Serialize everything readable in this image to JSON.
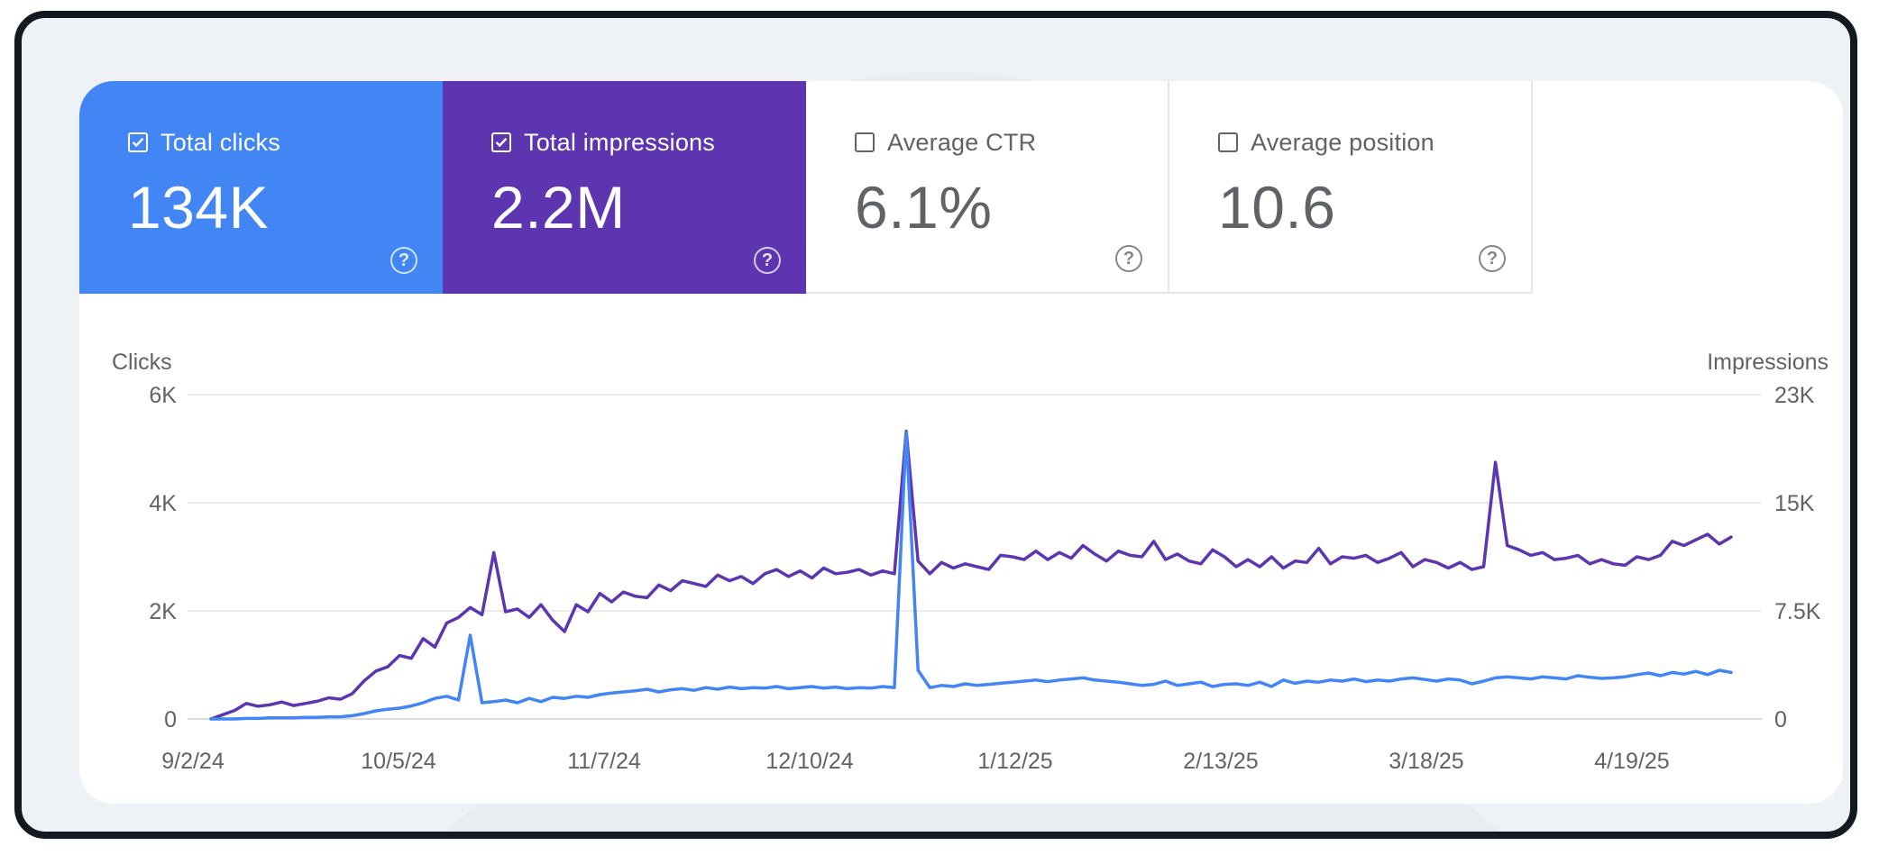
{
  "metrics": [
    {
      "label": "Total clicks",
      "value": "134K",
      "checked": true,
      "color": "#4285f4"
    },
    {
      "label": "Total impressions",
      "value": "2.2M",
      "checked": true,
      "color": "#5e35b1"
    },
    {
      "label": "Average CTR",
      "value": "6.1%",
      "checked": false,
      "color": "#ffffff"
    },
    {
      "label": "Average position",
      "value": "10.6",
      "checked": false,
      "color": "#ffffff"
    }
  ],
  "help_glyph": "?",
  "icons": {
    "checkbox_checked": "checkbox-checked-icon",
    "checkbox_empty": "checkbox-empty-icon",
    "help": "help-circle-icon"
  },
  "chart_data": {
    "type": "line",
    "left_axis_label": "Clicks",
    "right_axis_label": "Impressions",
    "left_ticks": [
      "6K",
      "4K",
      "2K",
      "0"
    ],
    "right_ticks": [
      "23K",
      "15K",
      "7.5K",
      "0"
    ],
    "left_ylim": [
      0,
      6000
    ],
    "right_ylim": [
      0,
      23000
    ],
    "x_ticks": [
      "9/2/24",
      "10/5/24",
      "11/7/24",
      "12/10/24",
      "1/12/25",
      "2/13/25",
      "3/18/25",
      "4/19/25"
    ],
    "grid": true,
    "series": [
      {
        "axis": "right",
        "color": "#5e35b1",
        "values": [
          0,
          300,
          600,
          1100,
          900,
          1000,
          1200,
          950,
          1100,
          1250,
          1500,
          1400,
          1800,
          2700,
          3400,
          3700,
          4500,
          4300,
          5700,
          5100,
          6800,
          7200,
          7900,
          7400,
          11800,
          7600,
          7800,
          7200,
          8100,
          7000,
          6200,
          8100,
          7600,
          8900,
          8300,
          9000,
          8700,
          8600,
          9500,
          9100,
          9800,
          9600,
          9400,
          10200,
          9800,
          10100,
          9600,
          10300,
          10600,
          10100,
          10500,
          10000,
          10700,
          10300,
          10400,
          10600,
          10200,
          10500,
          10300,
          20400,
          11200,
          10300,
          11100,
          10700,
          11000,
          10800,
          10600,
          11600,
          11500,
          11300,
          11900,
          11300,
          11800,
          11400,
          12300,
          11700,
          11200,
          11900,
          11600,
          11500,
          12600,
          11300,
          11700,
          11200,
          11000,
          12000,
          11500,
          10800,
          11300,
          10800,
          11500,
          10700,
          11200,
          11100,
          12100,
          11000,
          11500,
          11400,
          11600,
          11100,
          11400,
          11800,
          10800,
          11300,
          11100,
          10700,
          11100,
          10600,
          10800,
          18200,
          12300,
          12000,
          11600,
          11800,
          11300,
          11400,
          11600,
          11000,
          11300,
          11000,
          10900,
          11500,
          11300,
          11600,
          12600,
          12300,
          12700,
          13100,
          12400,
          12900
        ]
      },
      {
        "axis": "left",
        "color": "#4285f4",
        "values": [
          0,
          0,
          0,
          10,
          10,
          20,
          20,
          20,
          30,
          30,
          40,
          40,
          60,
          100,
          150,
          180,
          200,
          240,
          300,
          380,
          420,
          350,
          1550,
          300,
          320,
          350,
          300,
          380,
          320,
          400,
          380,
          420,
          400,
          450,
          480,
          500,
          520,
          550,
          500,
          540,
          560,
          530,
          580,
          550,
          590,
          560,
          580,
          570,
          600,
          560,
          580,
          600,
          570,
          590,
          560,
          580,
          570,
          600,
          580,
          5300,
          900,
          580,
          620,
          600,
          650,
          620,
          640,
          660,
          680,
          700,
          720,
          690,
          720,
          740,
          760,
          720,
          700,
          680,
          650,
          620,
          640,
          700,
          620,
          650,
          680,
          600,
          640,
          650,
          620,
          680,
          600,
          720,
          660,
          700,
          680,
          720,
          700,
          740,
          690,
          720,
          700,
          740,
          760,
          730,
          700,
          740,
          720,
          650,
          700,
          760,
          780,
          760,
          740,
          780,
          760,
          740,
          800,
          770,
          750,
          760,
          780,
          820,
          850,
          800,
          860,
          830,
          880,
          820,
          900,
          860
        ]
      }
    ]
  }
}
